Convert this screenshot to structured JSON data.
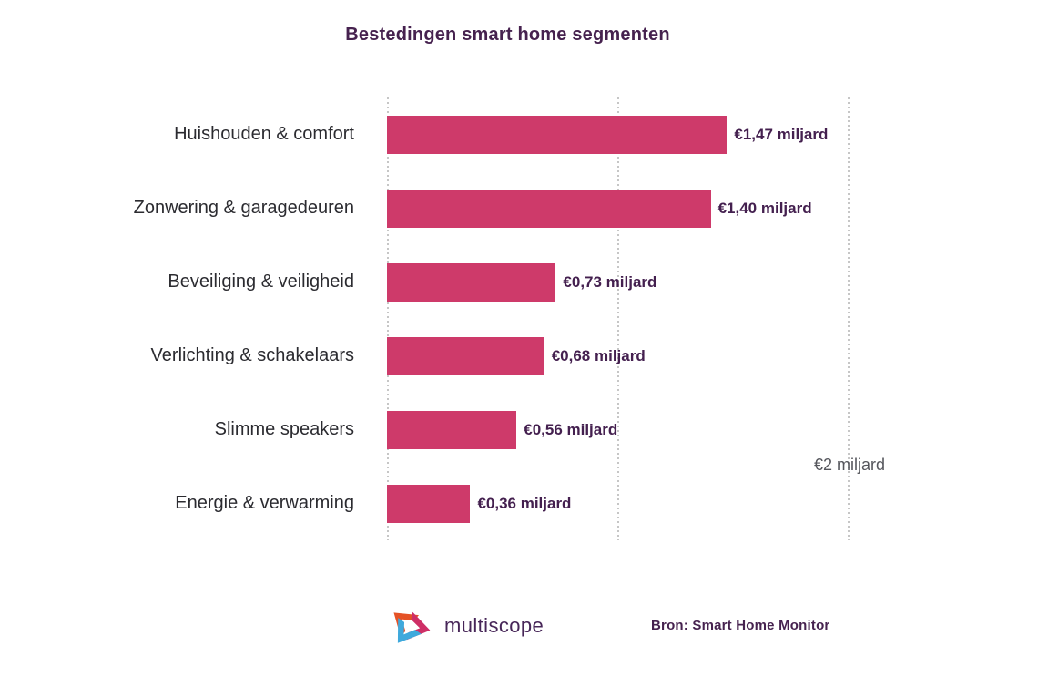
{
  "title": "Bestedingen smart home segmenten",
  "chart_data": {
    "type": "bar",
    "orientation": "horizontal",
    "title": "Bestedingen smart home segmenten",
    "categories": [
      "Huishouden & comfort",
      "Zonwering & garagedeuren",
      "Beveiliging & veiligheid",
      "Verlichting & schakelaars",
      "Slimme speakers",
      "Energie & verwarming"
    ],
    "values": [
      1.47,
      1.4,
      0.73,
      0.68,
      0.56,
      0.36
    ],
    "value_labels": [
      "€1,47 miljard",
      "€1,40 miljard",
      "€0,73 miljard",
      "€0,68 miljard",
      "€0,56 miljard",
      "€0,36 miljard"
    ],
    "unit": "miljard euro",
    "xlim": [
      0,
      2
    ],
    "gridlines_at": [
      0,
      1,
      2
    ],
    "grid_style": "dotted-vertical",
    "axis_end_label": "€2 miljard",
    "legend": "none"
  },
  "footer": {
    "logo_text": "multiscope",
    "source": "Bron: Smart Home Monitor"
  },
  "colors": {
    "bar": "#ce3a6a",
    "title": "#46224f",
    "value_label": "#44204f",
    "category_label": "#2b2b30",
    "axis_label": "#55565c",
    "gridline": "#c6c6c6",
    "logo_orange": "#e55226",
    "logo_pink": "#ce2f66",
    "logo_blue": "#3fa9dc",
    "logo_wordmark": "#472658"
  }
}
